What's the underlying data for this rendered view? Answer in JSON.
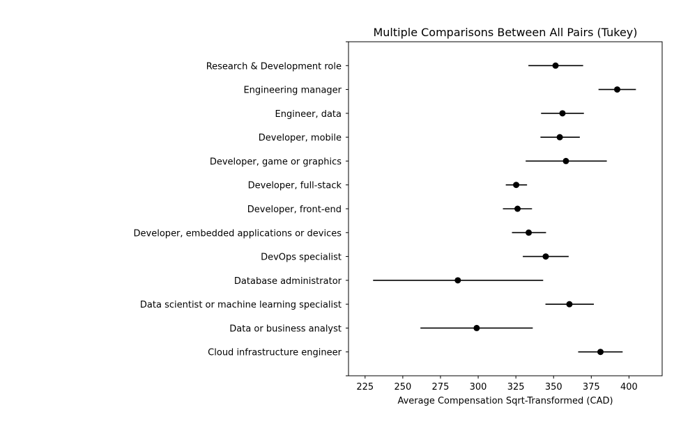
{
  "chart_data": {
    "type": "scatter",
    "title": "Multiple Comparisons Between All Pairs (Tukey)",
    "xlabel": "Average Compensation Sqrt-Transformed (CAD)",
    "ylabel": "",
    "xlim": [
      214,
      422
    ],
    "xticks": [
      225,
      250,
      275,
      300,
      325,
      350,
      375,
      400
    ],
    "grid": false,
    "colors": {
      "marker": "#000000",
      "errorbar": "#000000",
      "axes": "#000000"
    },
    "categories": [
      "Research & Development role",
      "Engineering manager",
      "Engineer, data",
      "Developer, mobile",
      "Developer, game or graphics",
      "Developer, full-stack",
      "Developer, front-end",
      "Developer, embedded applications or devices",
      "DevOps specialist",
      "Database administrator",
      "Data scientist or machine learning specialist",
      "Data or business analyst",
      "Cloud infrastructure engineer"
    ],
    "points": [
      {
        "category": "Research & Development role",
        "mean": 351.3,
        "lower": 333.3,
        "upper": 369.6
      },
      {
        "category": "Engineering manager",
        "mean": 392.2,
        "lower": 379.8,
        "upper": 404.6
      },
      {
        "category": "Engineer, data",
        "mean": 355.9,
        "lower": 341.7,
        "upper": 370.1
      },
      {
        "category": "Developer, mobile",
        "mean": 354.1,
        "lower": 341.3,
        "upper": 367.4
      },
      {
        "category": "Developer, game or graphics",
        "mean": 358.2,
        "lower": 331.5,
        "upper": 385.3
      },
      {
        "category": "Developer, full-stack",
        "mean": 325.2,
        "lower": 318.3,
        "upper": 332.4
      },
      {
        "category": "Developer, front-end",
        "mean": 326.1,
        "lower": 316.4,
        "upper": 335.7
      },
      {
        "category": "Developer, embedded applications or devices",
        "mean": 333.5,
        "lower": 322.4,
        "upper": 345.0
      },
      {
        "category": "DevOps specialist",
        "mean": 344.8,
        "lower": 329.6,
        "upper": 360.0
      },
      {
        "category": "Database administrator",
        "mean": 286.5,
        "lower": 230.3,
        "upper": 343.1
      },
      {
        "category": "Data scientist or machine learning specialist",
        "mean": 360.5,
        "lower": 344.6,
        "upper": 376.7
      },
      {
        "category": "Data or business analyst",
        "mean": 299.0,
        "lower": 261.7,
        "upper": 336.2
      },
      {
        "category": "Cloud infrastructure engineer",
        "mean": 381.1,
        "lower": 366.3,
        "upper": 395.8
      }
    ]
  }
}
